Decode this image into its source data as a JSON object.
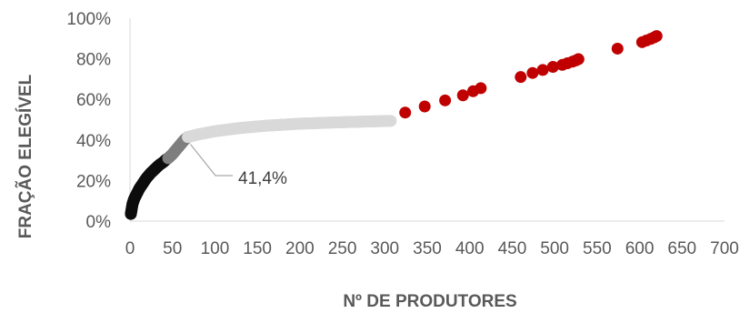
{
  "chart_data": {
    "type": "scatter",
    "title": "",
    "xlabel": "Nº DE PRODUTORES",
    "ylabel": "FRAÇÃO ELEGÍVEL",
    "xlim": [
      0,
      700
    ],
    "ylim": [
      0,
      100
    ],
    "x_ticks": [
      "0",
      "50",
      "100",
      "150",
      "200",
      "250",
      "300",
      "350",
      "400",
      "450",
      "500",
      "550",
      "600",
      "650",
      "700"
    ],
    "y_ticks": [
      "0%",
      "20%",
      "40%",
      "60%",
      "80%",
      "100%"
    ],
    "grid": false,
    "legend": "none",
    "annotation": {
      "text": "41,4%",
      "x": 68,
      "y": 41.4
    },
    "series": [
      {
        "color": "#0d0d0d",
        "points": [
          [
            1,
            3.5
          ],
          [
            2,
            6
          ],
          [
            3,
            8.5
          ],
          [
            5,
            11
          ],
          [
            8,
            13.5
          ],
          [
            11,
            16
          ],
          [
            15,
            18.5
          ],
          [
            19,
            21
          ],
          [
            24,
            23.5
          ],
          [
            29,
            25.5
          ],
          [
            34,
            27.5
          ],
          [
            39,
            29
          ],
          [
            43,
            30.5
          ]
        ]
      },
      {
        "color": "#7f7f7f",
        "points": [
          [
            45,
            31
          ],
          [
            50,
            33
          ],
          [
            55,
            35.5
          ],
          [
            60,
            38
          ],
          [
            64,
            40
          ],
          [
            68,
            41.4
          ]
        ]
      },
      {
        "color": "#d9d9d9",
        "points": [
          [
            68,
            41.4
          ],
          [
            80,
            42.7
          ],
          [
            100,
            44.3
          ],
          [
            130,
            45.9
          ],
          [
            160,
            47
          ],
          [
            200,
            48
          ],
          [
            240,
            48.6
          ],
          [
            280,
            49.1
          ],
          [
            307,
            49.4
          ]
        ]
      },
      {
        "color": "#c00000",
        "points": [
          [
            324,
            53.5
          ],
          [
            347,
            56.5
          ],
          [
            371,
            59.5
          ],
          [
            392,
            62
          ],
          [
            404,
            64
          ],
          [
            413,
            65.5
          ],
          [
            460,
            71
          ],
          [
            474,
            73
          ],
          [
            486,
            74.5
          ],
          [
            498,
            76
          ],
          [
            509,
            77
          ],
          [
            515,
            77.8
          ],
          [
            521,
            78.6
          ],
          [
            525,
            79.2
          ],
          [
            528,
            79.8
          ],
          [
            574,
            85
          ],
          [
            603,
            88.2
          ],
          [
            608,
            89
          ],
          [
            613,
            89.8
          ],
          [
            617,
            90.5
          ],
          [
            620,
            91.2
          ]
        ]
      }
    ]
  }
}
